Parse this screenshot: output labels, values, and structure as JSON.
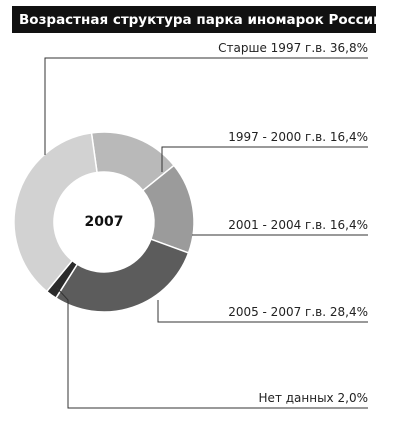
{
  "chart_data": {
    "type": "donut",
    "title": "Возрастная структура парка иномарок России",
    "center_label": "2007",
    "categories": [
      "Старше 1997 г.в.",
      "1997 - 2000 г.в.",
      "2001 - 2004 г.в.",
      "2005 - 2007 г.в.",
      "Нет данных"
    ],
    "values": [
      36.8,
      16.4,
      16.4,
      28.4,
      2.0
    ],
    "value_labels": [
      "36,8%",
      "16,4%",
      "16,4%",
      "28,4%",
      "2,0%"
    ],
    "colors": [
      "#d2d2d2",
      "#b9b9b9",
      "#9b9b9b",
      "#5c5c5c",
      "#2b2b2b"
    ]
  }
}
